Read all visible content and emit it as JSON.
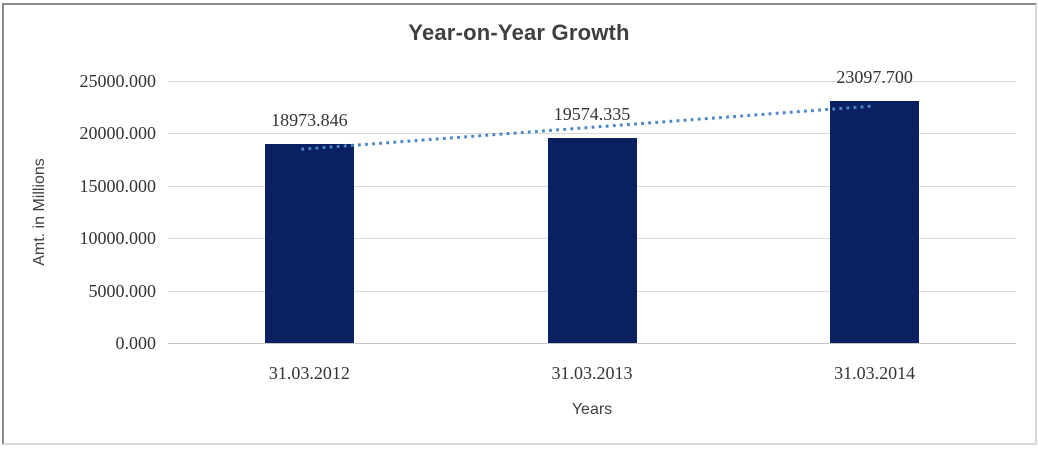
{
  "chart_data": {
    "type": "bar",
    "title": "Year-on-Year Growth",
    "xlabel": "Years",
    "ylabel": "Amt. in Millions",
    "categories": [
      "31.03.2012",
      "31.03.2013",
      "31.03.2014"
    ],
    "values": [
      18973.846,
      19574.335,
      23097.7
    ],
    "data_labels": [
      "18973.846",
      "19574.335",
      "23097.700"
    ],
    "ylim": [
      0,
      25000
    ],
    "ytick_step": 5000,
    "ytick_labels": [
      "0.000",
      "5000.000",
      "10000.000",
      "15000.000",
      "20000.000",
      "25000.000"
    ],
    "grid": true,
    "legend": "none",
    "colors": {
      "bar": "#0a2161",
      "trendline": "#4a86c6",
      "gridline": "#d9d9d9",
      "baseline": "#c6c6c6",
      "text": "#343434",
      "title_text": "#3f3f3f"
    },
    "trendline": {
      "type": "linear",
      "style": "dotted",
      "fitted_values": [
        18487,
        20549,
        22611
      ]
    }
  }
}
